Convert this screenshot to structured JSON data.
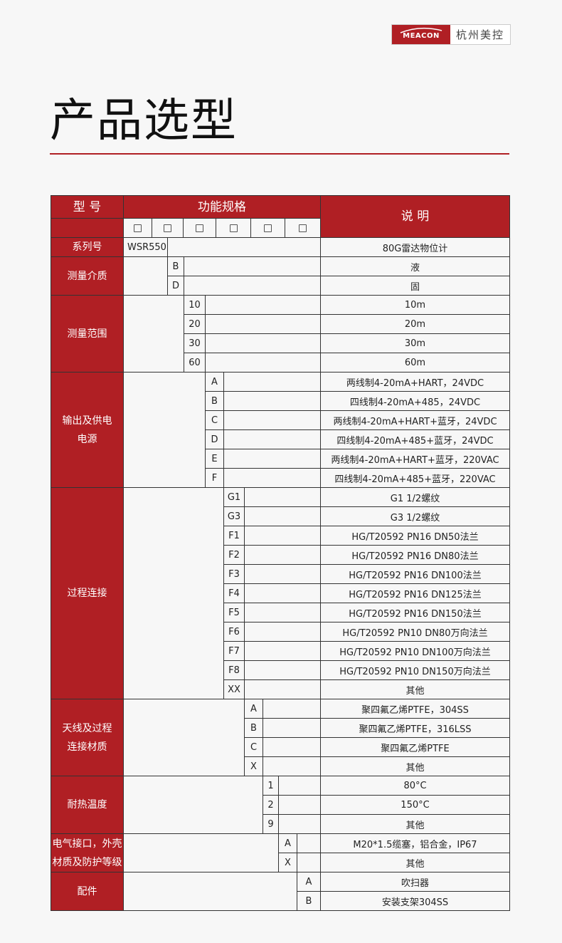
{
  "brand": {
    "logo_text": "MEACON",
    "company": "杭州美控"
  },
  "title": "产品选型",
  "colors": {
    "accent": "#b01f24",
    "background": "#f7f7f7"
  },
  "header": {
    "model": "型 号",
    "spec": "功能规格",
    "desc": "说 明",
    "checkbox_count": 6
  },
  "groups": [
    {
      "label": "系列号",
      "level": 1,
      "rows": [
        {
          "code": "WSR550",
          "desc": "80G雷达物位计"
        }
      ]
    },
    {
      "label": "测量介质",
      "level": 2,
      "rows": [
        {
          "code": "B",
          "desc": "液"
        },
        {
          "code": "D",
          "desc": "固"
        }
      ]
    },
    {
      "label": "测量范围",
      "level": 3,
      "rows": [
        {
          "code": "10",
          "desc": "10m"
        },
        {
          "code": "20",
          "desc": "20m"
        },
        {
          "code": "30",
          "desc": "30m"
        },
        {
          "code": "60",
          "desc": "60m"
        }
      ]
    },
    {
      "label": "输出及供电\n电源",
      "level": 4,
      "rows": [
        {
          "code": "A",
          "desc": "两线制4-20mA+HART，24VDC"
        },
        {
          "code": "B",
          "desc": "四线制4-20mA+485，24VDC"
        },
        {
          "code": "C",
          "desc": "两线制4-20mA+HART+蓝牙，24VDC"
        },
        {
          "code": "D",
          "desc": "四线制4-20mA+485+蓝牙，24VDC"
        },
        {
          "code": "E",
          "desc": "两线制4-20mA+HART+蓝牙，220VAC"
        },
        {
          "code": "F",
          "desc": "四线制4-20mA+485+蓝牙，220VAC"
        }
      ]
    },
    {
      "label": "过程连接",
      "level": 5,
      "rows": [
        {
          "code": "G1",
          "desc": "G1 1/2螺纹"
        },
        {
          "code": "G3",
          "desc": "G3 1/2螺纹"
        },
        {
          "code": "F1",
          "desc": "HG/T20592 PN16 DN50法兰"
        },
        {
          "code": "F2",
          "desc": "HG/T20592 PN16 DN80法兰"
        },
        {
          "code": "F3",
          "desc": "HG/T20592 PN16 DN100法兰"
        },
        {
          "code": "F4",
          "desc": "HG/T20592 PN16 DN125法兰"
        },
        {
          "code": "F5",
          "desc": "HG/T20592 PN16 DN150法兰"
        },
        {
          "code": "F6",
          "desc": "HG/T20592 PN10 DN80万向法兰"
        },
        {
          "code": "F7",
          "desc": "HG/T20592 PN10 DN100万向法兰"
        },
        {
          "code": "F8",
          "desc": "HG/T20592 PN10 DN150万向法兰"
        },
        {
          "code": "XX",
          "desc": "其他"
        }
      ]
    },
    {
      "label": "天线及过程\n连接材质",
      "level": 6,
      "rows": [
        {
          "code": "A",
          "desc": "聚四氟乙烯PTFE，304SS"
        },
        {
          "code": "B",
          "desc": "聚四氟乙烯PTFE，316LSS"
        },
        {
          "code": "C",
          "desc": "聚四氟乙烯PTFE"
        },
        {
          "code": "X",
          "desc": "其他"
        }
      ]
    },
    {
      "label": "耐热温度",
      "level": 7,
      "rows": [
        {
          "code": "1",
          "desc": "80°C"
        },
        {
          "code": "2",
          "desc": "150°C"
        },
        {
          "code": "9",
          "desc": "其他"
        }
      ]
    },
    {
      "label": "电气接口，外壳\n材质及防护等级",
      "level": 8,
      "rows": [
        {
          "code": "A",
          "desc": "M20*1.5缆塞，铝合金，IP67"
        },
        {
          "code": "X",
          "desc": "其他"
        }
      ]
    },
    {
      "label": "配件",
      "level": 9,
      "rows": [
        {
          "code": "A",
          "desc": "吹扫器"
        },
        {
          "code": "B",
          "desc": "安装支架304SS"
        }
      ]
    }
  ]
}
